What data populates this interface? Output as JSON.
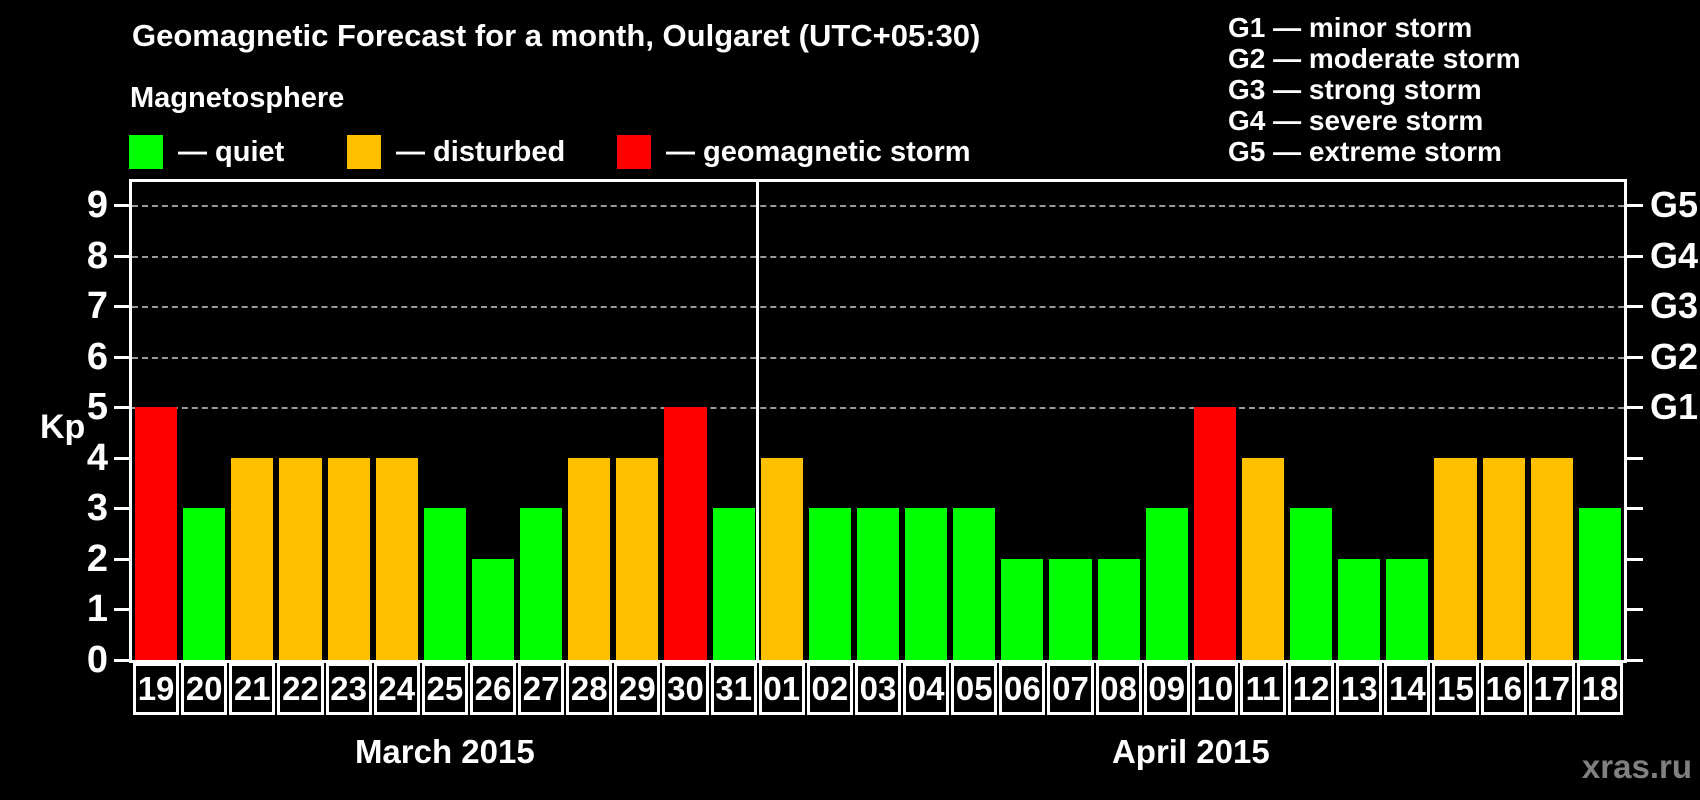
{
  "header": {
    "title": "Geomagnetic Forecast for a month, Oulgaret (UTC+05:30)"
  },
  "legend": {
    "title": "Magnetosphere",
    "items": [
      {
        "name": "quiet",
        "label": "— quiet",
        "color": "#00FF00"
      },
      {
        "name": "disturbed",
        "label": "— disturbed",
        "color": "#FFC000"
      },
      {
        "name": "geomagnetic-storm",
        "label": "— geomagnetic storm",
        "color": "#FF0000"
      }
    ]
  },
  "g_legend": [
    {
      "label": "G1 — minor storm"
    },
    {
      "label": "G2 — moderate storm"
    },
    {
      "label": "G3 — strong storm"
    },
    {
      "label": "G4 — severe storm"
    },
    {
      "label": "G5 — extreme storm"
    }
  ],
  "watermark": "xras.ru",
  "chart_data": {
    "type": "bar",
    "title": "Geomagnetic Forecast for a month, Oulgaret (UTC+05:30)",
    "ylabel": "Kp",
    "ylim": [
      0,
      9.4
    ],
    "yticks": [
      0,
      1,
      2,
      3,
      4,
      5,
      6,
      7,
      8,
      9
    ],
    "gridlines_at": [
      5,
      6,
      7,
      8,
      9
    ],
    "grid_style": "dashed gray horizontal lines at storm levels only",
    "right_axis_labels": [
      {
        "kp": 5,
        "label": "G1"
      },
      {
        "kp": 6,
        "label": "G2"
      },
      {
        "kp": 7,
        "label": "G3"
      },
      {
        "kp": 8,
        "label": "G4"
      },
      {
        "kp": 9,
        "label": "G5"
      }
    ],
    "months": [
      {
        "label": "March 2015",
        "days": 13
      },
      {
        "label": "April 2015",
        "days": 18
      }
    ],
    "categories": [
      "19",
      "20",
      "21",
      "22",
      "23",
      "24",
      "25",
      "26",
      "27",
      "28",
      "29",
      "30",
      "31",
      "01",
      "02",
      "03",
      "04",
      "05",
      "06",
      "07",
      "08",
      "09",
      "10",
      "11",
      "12",
      "13",
      "14",
      "15",
      "16",
      "17",
      "18"
    ],
    "values": [
      5,
      3,
      4,
      4,
      4,
      4,
      3,
      2,
      3,
      4,
      4,
      5,
      3,
      4,
      3,
      3,
      3,
      3,
      2,
      2,
      2,
      3,
      5,
      4,
      3,
      2,
      2,
      4,
      4,
      4,
      3
    ],
    "statuses": [
      "storm",
      "quiet",
      "disturbed",
      "disturbed",
      "disturbed",
      "disturbed",
      "quiet",
      "quiet",
      "quiet",
      "disturbed",
      "disturbed",
      "storm",
      "quiet",
      "disturbed",
      "quiet",
      "quiet",
      "quiet",
      "quiet",
      "quiet",
      "quiet",
      "quiet",
      "quiet",
      "storm",
      "disturbed",
      "quiet",
      "quiet",
      "quiet",
      "disturbed",
      "disturbed",
      "disturbed",
      "quiet"
    ],
    "colors": {
      "quiet": "#00FF00",
      "disturbed": "#FFC000",
      "storm": "#FF0000"
    }
  }
}
